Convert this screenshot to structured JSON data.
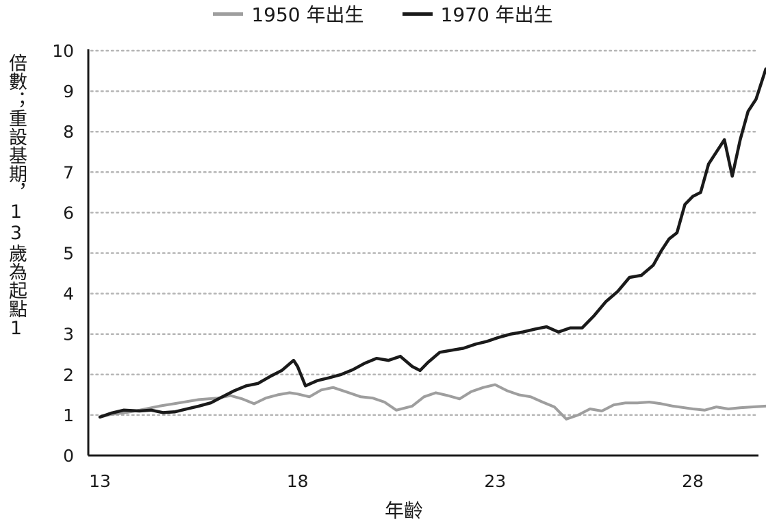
{
  "chart_data": {
    "type": "line",
    "title": "",
    "xlabel": "年齡",
    "ylabel": "倍數；重設基期，13歲為起點1",
    "xlim": [
      13,
      29.85
    ],
    "ylim": [
      0,
      10
    ],
    "x_ticks": [
      13,
      18,
      23,
      28
    ],
    "y_ticks": [
      0,
      1,
      2,
      3,
      4,
      5,
      6,
      7,
      8,
      9,
      10
    ],
    "grid": "horizontal-dotted",
    "legend_position": "top-center",
    "series": [
      {
        "name": "1950 年出生",
        "color": "#9e9e9e",
        "x": [
          13.0,
          13.3,
          13.6,
          14.0,
          14.5,
          15.0,
          15.5,
          16.0,
          16.3,
          16.6,
          16.9,
          17.2,
          17.5,
          17.8,
          18.0,
          18.3,
          18.6,
          18.9,
          19.3,
          19.6,
          19.9,
          20.2,
          20.5,
          20.9,
          21.2,
          21.5,
          21.8,
          22.1,
          22.4,
          22.7,
          23.0,
          23.3,
          23.6,
          23.9,
          24.2,
          24.5,
          24.8,
          25.1,
          25.4,
          25.7,
          26.0,
          26.3,
          26.6,
          26.9,
          27.2,
          27.5,
          27.8,
          28.0,
          28.3,
          28.6,
          28.9,
          29.2,
          29.5,
          29.85
        ],
        "values": [
          0.95,
          1.02,
          1.05,
          1.12,
          1.22,
          1.3,
          1.38,
          1.42,
          1.48,
          1.4,
          1.28,
          1.42,
          1.5,
          1.55,
          1.52,
          1.45,
          1.62,
          1.68,
          1.55,
          1.45,
          1.42,
          1.32,
          1.12,
          1.22,
          1.45,
          1.55,
          1.48,
          1.4,
          1.58,
          1.68,
          1.75,
          1.6,
          1.5,
          1.45,
          1.32,
          1.2,
          0.9,
          1.0,
          1.15,
          1.1,
          1.25,
          1.3,
          1.3,
          1.32,
          1.28,
          1.22,
          1.18,
          1.15,
          1.12,
          1.2,
          1.15,
          1.18,
          1.2,
          1.22
        ]
      },
      {
        "name": "1970 年出生",
        "color": "#1a1a1a",
        "x": [
          13.0,
          13.3,
          13.6,
          14.0,
          14.3,
          14.6,
          14.9,
          15.2,
          15.5,
          15.8,
          16.1,
          16.4,
          16.7,
          17.0,
          17.3,
          17.6,
          17.9,
          18.0,
          18.2,
          18.5,
          18.8,
          19.1,
          19.4,
          19.7,
          20.0,
          20.3,
          20.6,
          20.9,
          21.1,
          21.3,
          21.6,
          21.9,
          22.2,
          22.5,
          22.8,
          23.1,
          23.4,
          23.7,
          24.0,
          24.3,
          24.6,
          24.9,
          25.2,
          25.5,
          25.8,
          26.1,
          26.4,
          26.7,
          27.0,
          27.2,
          27.4,
          27.6,
          27.8,
          28.0,
          28.2,
          28.4,
          28.6,
          28.8,
          29.0,
          29.2,
          29.4,
          29.6,
          29.85
        ],
        "values": [
          0.95,
          1.05,
          1.12,
          1.1,
          1.12,
          1.06,
          1.08,
          1.15,
          1.22,
          1.3,
          1.45,
          1.6,
          1.72,
          1.78,
          1.95,
          2.1,
          2.35,
          2.2,
          1.72,
          1.85,
          1.92,
          2.0,
          2.12,
          2.28,
          2.4,
          2.35,
          2.45,
          2.2,
          2.1,
          2.3,
          2.55,
          2.6,
          2.65,
          2.75,
          2.82,
          2.92,
          3.0,
          3.05,
          3.12,
          3.18,
          3.05,
          3.15,
          3.15,
          3.45,
          3.8,
          4.05,
          4.4,
          4.45,
          4.7,
          5.05,
          5.35,
          5.5,
          6.2,
          6.4,
          6.5,
          7.2,
          7.5,
          7.8,
          6.9,
          7.8,
          8.5,
          8.8,
          9.55
        ]
      }
    ]
  }
}
